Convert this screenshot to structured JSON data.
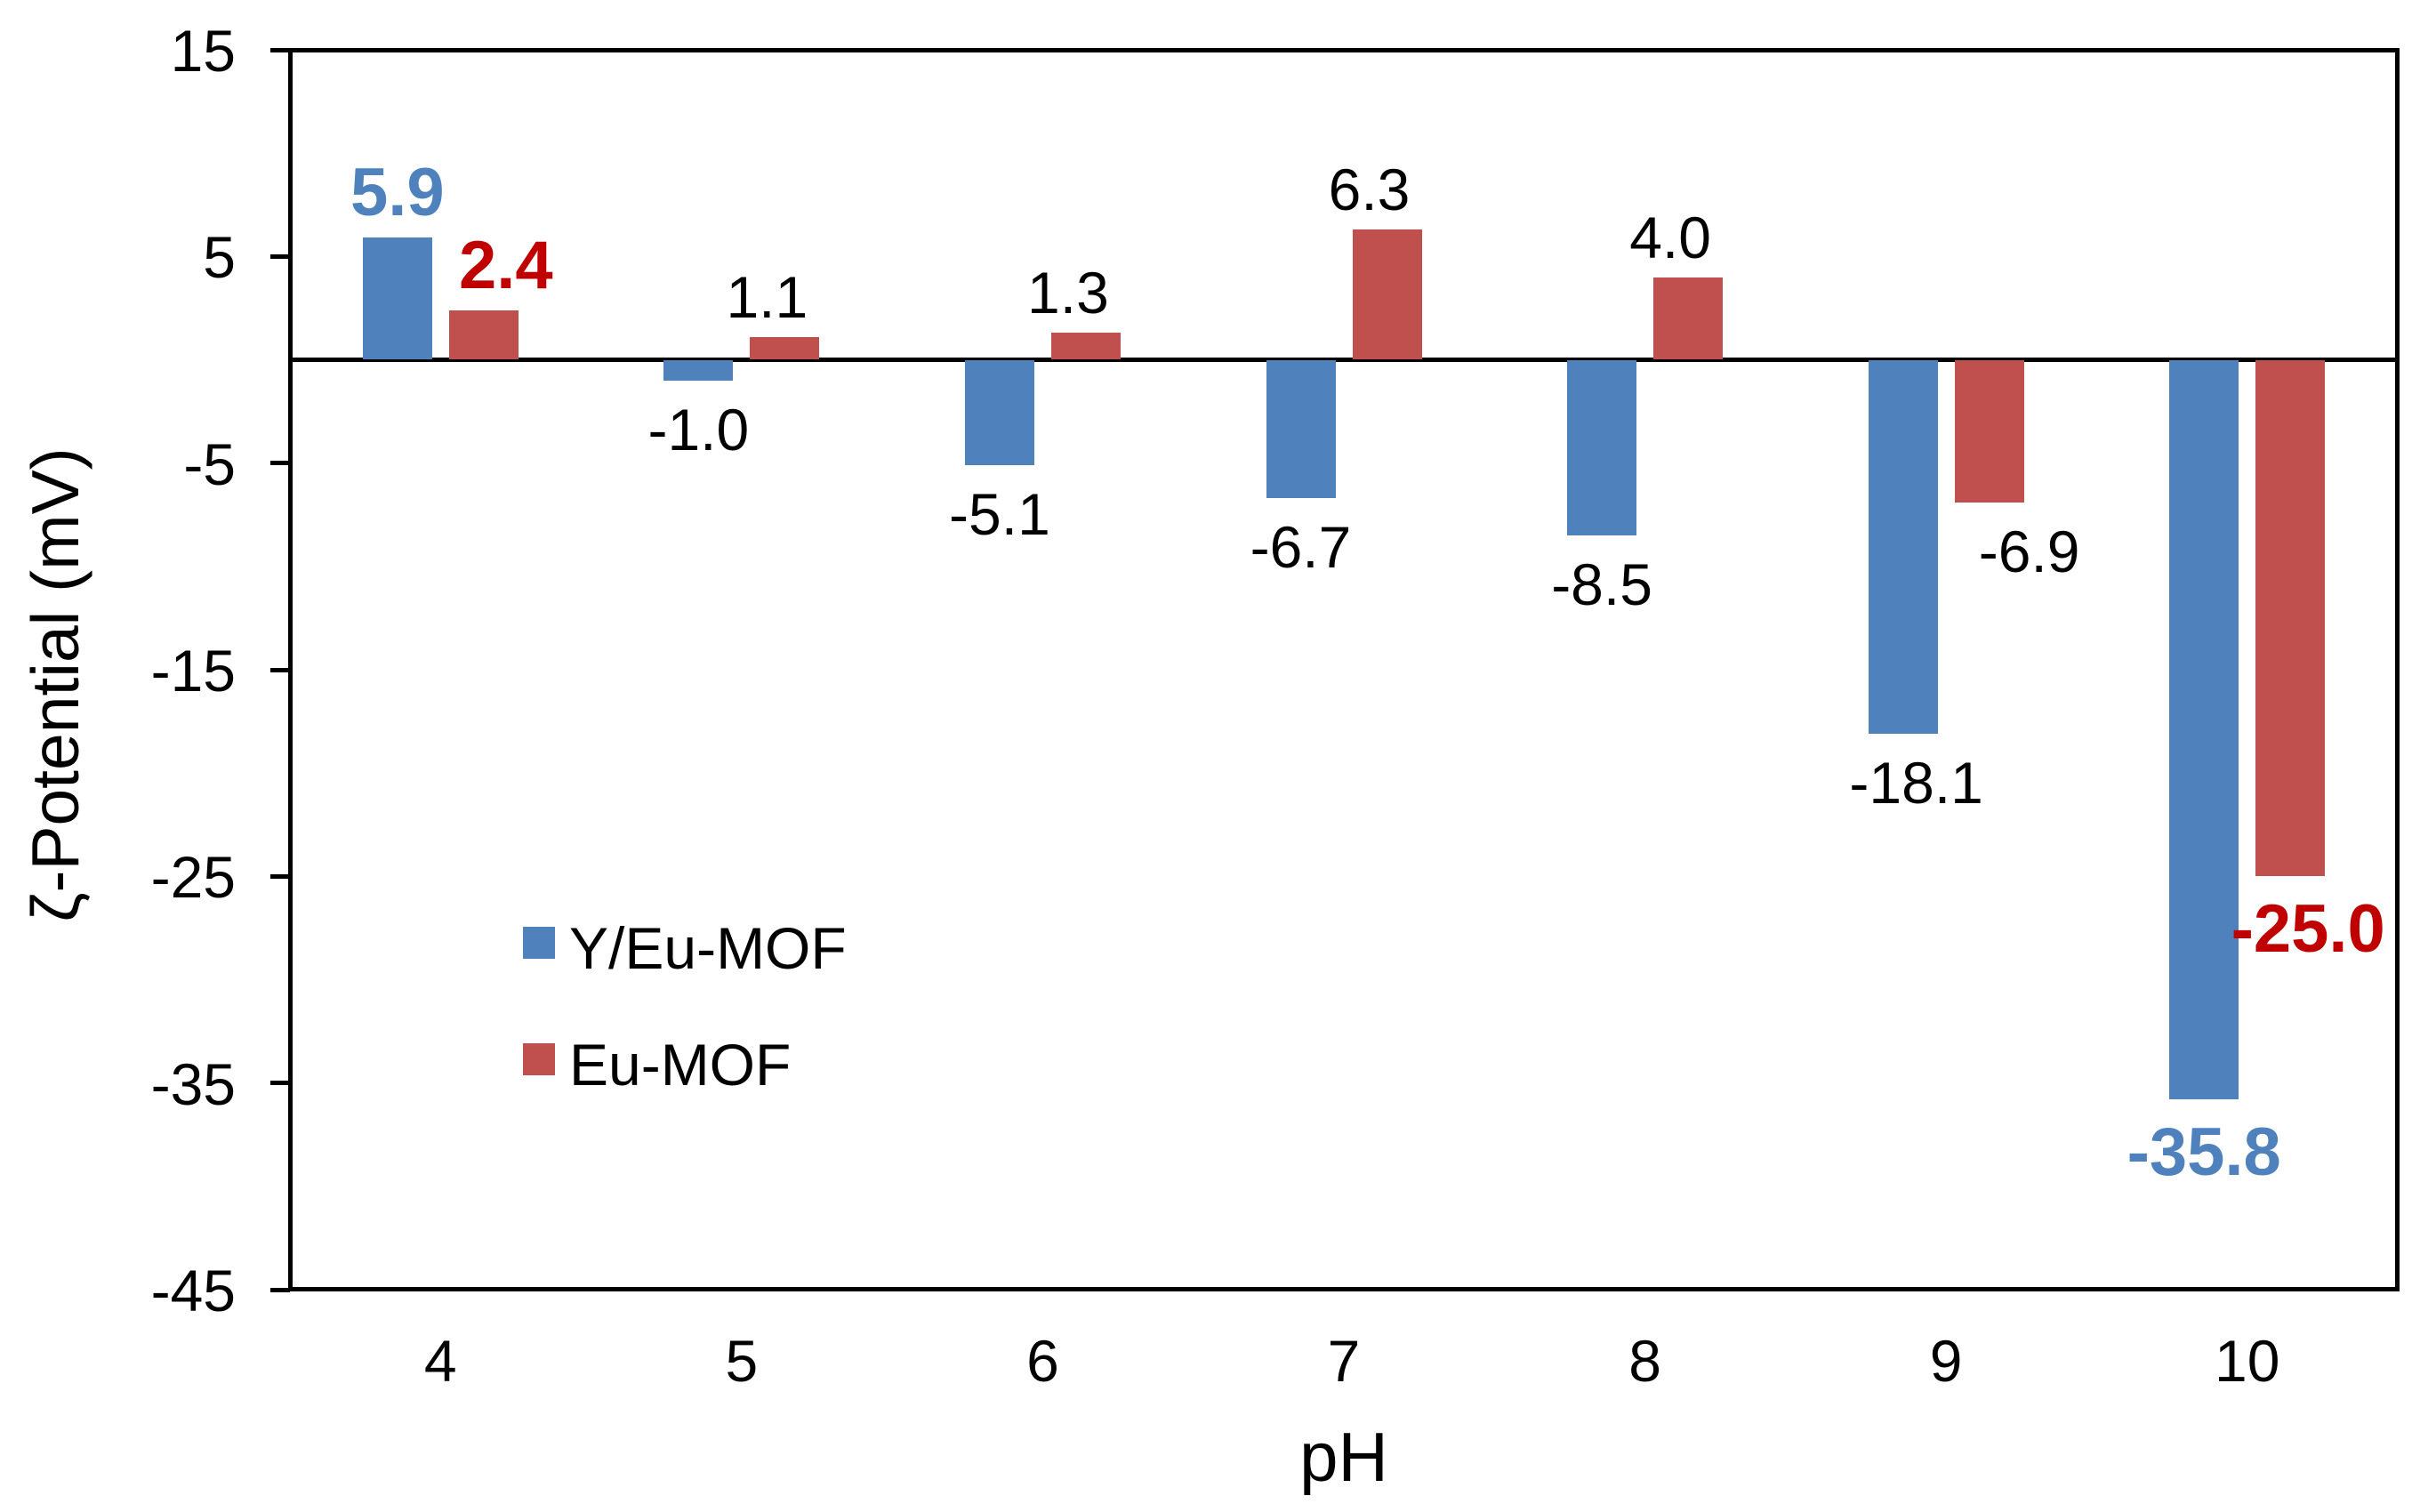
{
  "chart_data": {
    "type": "bar",
    "title": "",
    "xlabel": "pH",
    "ylabel": "ζ-Potential (mV)",
    "categories": [
      "4",
      "5",
      "6",
      "7",
      "8",
      "9",
      "10"
    ],
    "ylim": [
      -45,
      15
    ],
    "yticks": [
      "15",
      "5",
      "-5",
      "-15",
      "-25",
      "-35",
      "-45"
    ],
    "ytick_values": [
      15,
      5,
      -5,
      -15,
      -25,
      -35,
      -45
    ],
    "grid": "off",
    "legend_position": "inside-middle-left",
    "axis_color": "#000000",
    "series": [
      {
        "name": "Y/Eu-MOF",
        "color": "#4F81BD",
        "points": [
          {
            "category": "4",
            "value": 5.9,
            "label": "5.9",
            "label_color": "#4F81BD",
            "bold": true,
            "dx": 0
          },
          {
            "category": "5",
            "value": -1.0,
            "label": "-1.0",
            "label_color": "#000000",
            "bold": false,
            "dx": 0
          },
          {
            "category": "6",
            "value": -5.1,
            "label": "-5.1",
            "label_color": "#000000",
            "bold": false,
            "dx": 0
          },
          {
            "category": "7",
            "value": -6.7,
            "label": "-6.7",
            "label_color": "#000000",
            "bold": false,
            "dx": 0
          },
          {
            "category": "8",
            "value": -8.5,
            "label": "-8.5",
            "label_color": "#000000",
            "bold": false,
            "dx": 0
          },
          {
            "category": "9",
            "value": -18.1,
            "label": "-18.1",
            "label_color": "#000000",
            "bold": false,
            "dx": 15
          },
          {
            "category": "10",
            "value": -35.8,
            "label": "-35.8",
            "label_color": "#4F81BD",
            "bold": true,
            "dx": 0
          }
        ]
      },
      {
        "name": "Eu-MOF",
        "color": "#C0504D",
        "points": [
          {
            "category": "4",
            "value": 2.4,
            "label": "2.4",
            "label_color": "#C00000",
            "bold": true,
            "dx": 25
          },
          {
            "category": "5",
            "value": 1.1,
            "label": "1.1",
            "label_color": "#000000",
            "bold": false,
            "dx": -20
          },
          {
            "category": "6",
            "value": 1.3,
            "label": "1.3",
            "label_color": "#000000",
            "bold": false,
            "dx": -20
          },
          {
            "category": "7",
            "value": 6.3,
            "label": "6.3",
            "label_color": "#000000",
            "bold": false,
            "dx": -20
          },
          {
            "category": "8",
            "value": 4.0,
            "label": "4.0",
            "label_color": "#000000",
            "bold": false,
            "dx": -20
          },
          {
            "category": "9",
            "value": -6.9,
            "label": "-6.9",
            "label_color": "#000000",
            "bold": false,
            "dx": 45
          },
          {
            "category": "10",
            "value": -25.0,
            "label": "-25.0",
            "label_color": "#C00000",
            "bold": true,
            "dx": 20
          }
        ]
      }
    ],
    "legend": {
      "items": [
        {
          "label": "Y/Eu-MOF",
          "color": "#4F81BD"
        },
        {
          "label": "Eu-MOF",
          "color": "#C0504D"
        }
      ]
    }
  }
}
